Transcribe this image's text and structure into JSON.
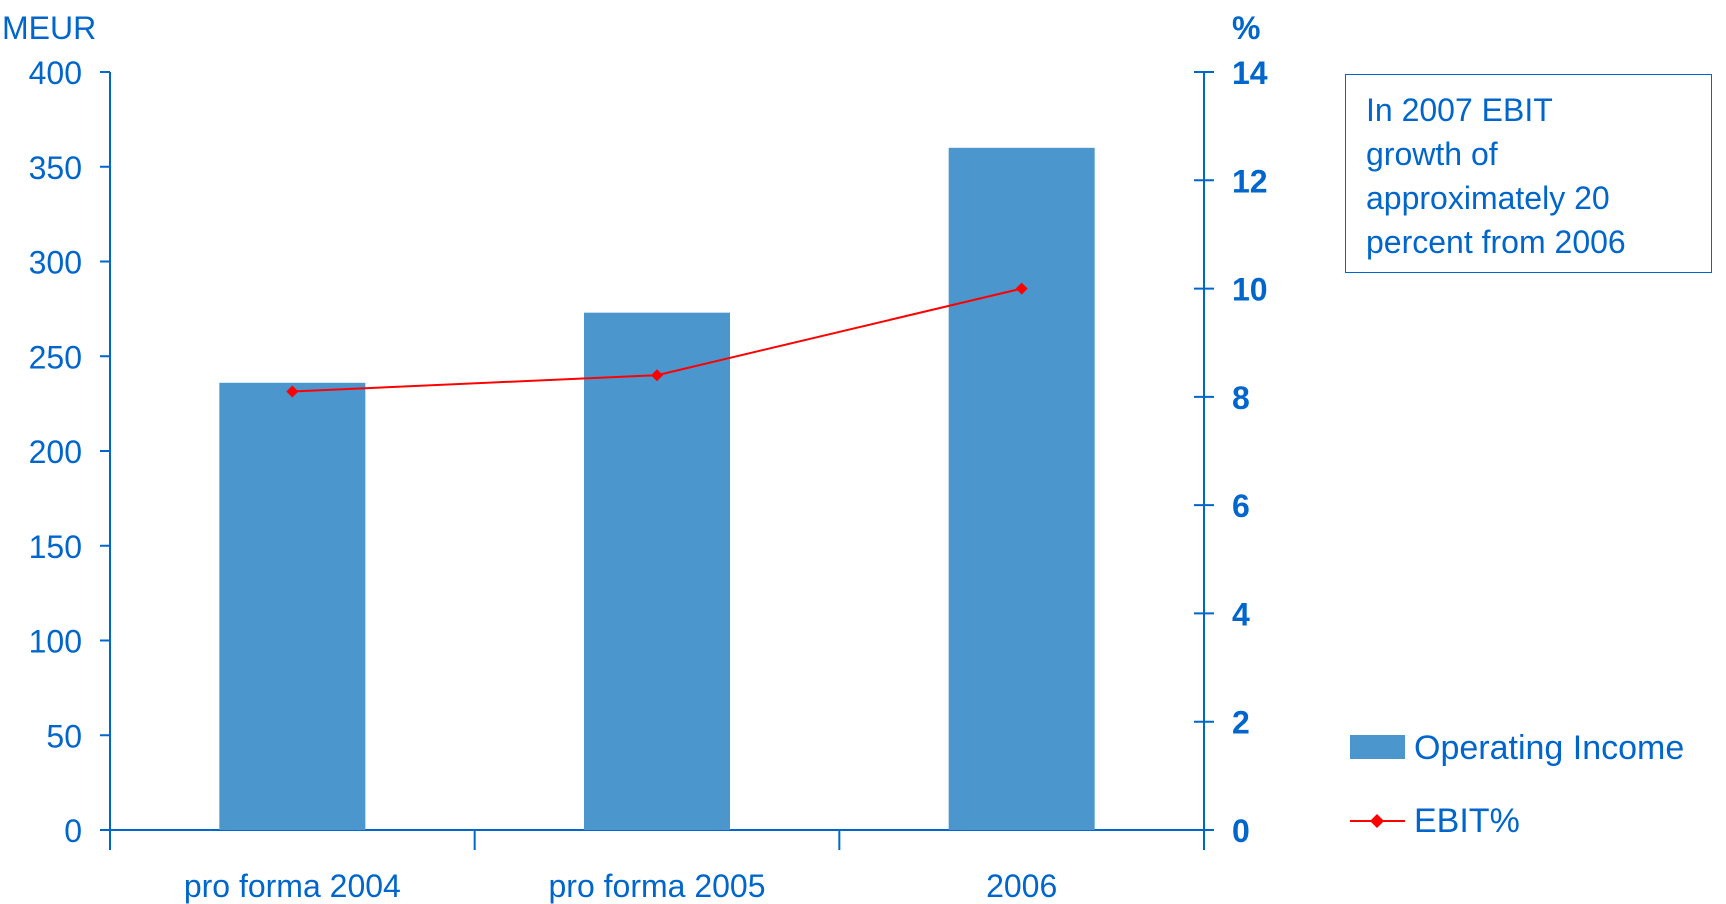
{
  "colors": {
    "text": "#0066cc",
    "bar": "#4b96cc",
    "line": "#ff0000",
    "axis": "#0066cc"
  },
  "legend": {
    "items": [
      {
        "label": "Operating Income",
        "type": "bar-swatch"
      },
      {
        "label": "EBIT%",
        "type": "line-marker"
      }
    ]
  },
  "note": {
    "text": "In 2007 EBIT\ngrowth of\napproximately 20\npercent from 2006"
  },
  "chart_data": {
    "type": "bar",
    "categories": [
      "pro forma 2004",
      "pro forma 2005",
      "2006"
    ],
    "series": [
      {
        "name": "Operating Income",
        "type": "bar",
        "axis": "left",
        "values": [
          236,
          273,
          360
        ]
      },
      {
        "name": "EBIT%",
        "type": "line",
        "axis": "right",
        "values": [
          8.1,
          8.4,
          10.0
        ]
      }
    ],
    "ylabel": "MEUR",
    "ylim": [
      0,
      400
    ],
    "yticks": [
      0,
      50,
      100,
      150,
      200,
      250,
      300,
      350,
      400
    ],
    "y2label": "%",
    "y2lim": [
      0,
      14
    ],
    "y2ticks": [
      0,
      2,
      4,
      6,
      8,
      10,
      12,
      14
    ],
    "grid": false,
    "legend_position": "right"
  }
}
